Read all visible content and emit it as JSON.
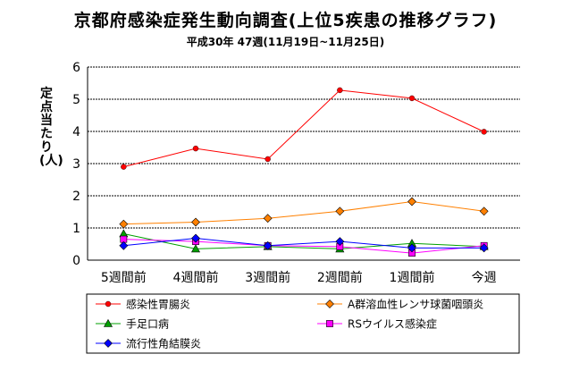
{
  "chart_data": {
    "type": "line",
    "title": "京都府感染症発生動向調査(上位5疾患の推移グラフ)",
    "subtitle": "平成30年 47週(11月19日~11月25日)",
    "xlabel": "",
    "ylabel": "定点当たり(人)",
    "categories": [
      "5週間前",
      "4週間前",
      "3週間前",
      "2週間前",
      "1週間前",
      "今週"
    ],
    "ylim": [
      0,
      6
    ],
    "yticks": [
      0,
      1,
      2,
      3,
      4,
      5,
      6
    ],
    "grid": "horizontal",
    "legend_position": "bottom",
    "series": [
      {
        "name": "感染性胃腸炎",
        "color": "#ff0000",
        "marker": "circle",
        "values": [
          2.9,
          3.47,
          3.14,
          5.28,
          5.03,
          3.99
        ]
      },
      {
        "name": "A群溶血性レンサ球菌咽頭炎",
        "color": "#ff8000",
        "marker": "diamond",
        "values": [
          1.12,
          1.18,
          1.3,
          1.52,
          1.82,
          1.52
        ]
      },
      {
        "name": "手足口病",
        "color": "#00a000",
        "marker": "triangle",
        "values": [
          0.82,
          0.35,
          0.42,
          0.35,
          0.52,
          0.42
        ]
      },
      {
        "name": "RSウイルス感染症",
        "color": "#ff00ff",
        "marker": "square",
        "values": [
          0.65,
          0.58,
          0.45,
          0.42,
          0.22,
          0.45
        ]
      },
      {
        "name": "流行性角結膜炎",
        "color": "#0000ff",
        "marker": "diamond",
        "values": [
          0.45,
          0.68,
          0.45,
          0.58,
          0.38,
          0.38
        ]
      }
    ]
  }
}
